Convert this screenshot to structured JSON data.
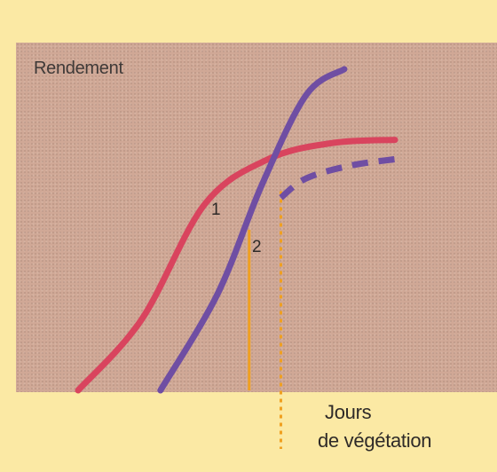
{
  "chart_data": {
    "type": "line",
    "ylabel": "Rendement",
    "xlabel_lines": [
      "Jours",
      "de végétation"
    ],
    "series": [
      {
        "label": "1",
        "color": "#d9445e",
        "style": "solid",
        "points": [
          [
            0.0,
            0.0
          ],
          [
            0.2,
            0.22
          ],
          [
            0.4,
            0.58
          ],
          [
            0.6,
            0.72
          ],
          [
            0.8,
            0.77
          ],
          [
            1.0,
            0.78
          ]
        ]
      },
      {
        "label": "2",
        "color": "#6f4ea3",
        "style": "solid",
        "points": [
          [
            0.26,
            0.0
          ],
          [
            0.44,
            0.3
          ],
          [
            0.58,
            0.64
          ],
          [
            0.72,
            0.92
          ],
          [
            0.84,
            1.0
          ]
        ]
      },
      {
        "label": "",
        "color": "#6f4ea3",
        "style": "dashed",
        "points": [
          [
            0.64,
            0.6
          ],
          [
            0.72,
            0.66
          ],
          [
            0.86,
            0.7
          ],
          [
            1.0,
            0.72
          ]
        ]
      }
    ],
    "markers": [
      {
        "x": 0.54,
        "y": 0.5,
        "color": "#f0a020",
        "style": "solid"
      },
      {
        "x": 0.64,
        "y": 0.62,
        "color": "#f0a020",
        "style": "dotted"
      }
    ],
    "grid": false
  }
}
